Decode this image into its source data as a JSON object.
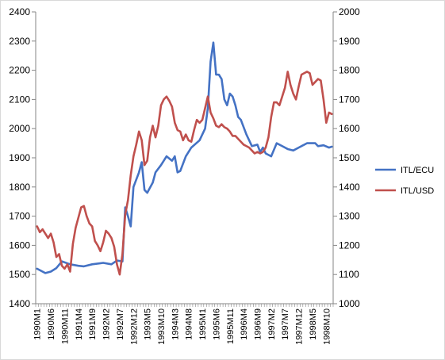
{
  "chart_data": {
    "type": "line",
    "title": "",
    "xlabel": "",
    "ylabel": "",
    "y_left": {
      "min": 1400,
      "max": 2400,
      "step": 100
    },
    "y_right": {
      "min": 1000,
      "max": 2000,
      "step": 100
    },
    "grid": false,
    "legend_position": "right",
    "x_tick_labels": [
      "1990M1",
      "1990M6",
      "1990M11",
      "1991M4",
      "1991M9",
      "1992M2",
      "1992M7",
      "1992M12",
      "1993M5",
      "1993M10",
      "1994M3",
      "1994M8",
      "1995M1",
      "1995M6",
      "1995M11",
      "1996M4",
      "1996M9",
      "1997M2",
      "1997M7",
      "1997M12",
      "1998M5",
      "1998M10"
    ],
    "x_start": "1990M1",
    "n_months": 108,
    "series": [
      {
        "name": "ITL/ECU",
        "axis": "left",
        "color": "#4472C4",
        "points": [
          [
            "1990M1",
            1520
          ],
          [
            "1990M4",
            1505
          ],
          [
            "1990M6",
            1510
          ],
          [
            "1990M8",
            1522
          ],
          [
            "1990M10",
            1545
          ],
          [
            "1991M1",
            1535
          ],
          [
            "1991M4",
            1530
          ],
          [
            "1991M6",
            1528
          ],
          [
            "1991M9",
            1535
          ],
          [
            "1992M1",
            1540
          ],
          [
            "1992M4",
            1535
          ],
          [
            "1992M6",
            1548
          ],
          [
            "1992M8",
            1545
          ],
          [
            "1992M9",
            1730
          ],
          [
            "1992M10",
            1700
          ],
          [
            "1992M11",
            1665
          ],
          [
            "1992M12",
            1800
          ],
          [
            "1993M2",
            1850
          ],
          [
            "1993M3",
            1885
          ],
          [
            "1993M4",
            1790
          ],
          [
            "1993M5",
            1780
          ],
          [
            "1993M7",
            1815
          ],
          [
            "1993M8",
            1850
          ],
          [
            "1993M10",
            1875
          ],
          [
            "1993M12",
            1905
          ],
          [
            "1994M2",
            1890
          ],
          [
            "1994M3",
            1905
          ],
          [
            "1994M4",
            1850
          ],
          [
            "1994M5",
            1855
          ],
          [
            "1994M7",
            1905
          ],
          [
            "1994M9",
            1935
          ],
          [
            "1994M12",
            1960
          ],
          [
            "1995M2",
            2000
          ],
          [
            "1995M3",
            2070
          ],
          [
            "1995M4",
            2230
          ],
          [
            "1995M5",
            2295
          ],
          [
            "1995M6",
            2185
          ],
          [
            "1995M7",
            2185
          ],
          [
            "1995M8",
            2170
          ],
          [
            "1995M9",
            2100
          ],
          [
            "1995M10",
            2080
          ],
          [
            "1995M11",
            2120
          ],
          [
            "1995M12",
            2110
          ],
          [
            "1996M1",
            2080
          ],
          [
            "1996M2",
            2040
          ],
          [
            "1996M3",
            2030
          ],
          [
            "1996M5",
            1980
          ],
          [
            "1996M7",
            1940
          ],
          [
            "1996M9",
            1945
          ],
          [
            "1996M10",
            1920
          ],
          [
            "1996M11",
            1935
          ],
          [
            "1996M12",
            1915
          ],
          [
            "1997M2",
            1905
          ],
          [
            "1997M4",
            1950
          ],
          [
            "1997M6",
            1940
          ],
          [
            "1997M8",
            1930
          ],
          [
            "1997M10",
            1925
          ],
          [
            "1997M12",
            1935
          ],
          [
            "1998M3",
            1950
          ],
          [
            "1998M6",
            1950
          ],
          [
            "1998M7",
            1940
          ],
          [
            "1998M9",
            1943
          ],
          [
            "1998M11",
            1935
          ],
          [
            "1998M12",
            1938
          ]
        ]
      },
      {
        "name": "ITL/USD",
        "axis": "right",
        "color": "#C0504D",
        "points": [
          [
            "1990M1",
            1265
          ],
          [
            "1990M2",
            1245
          ],
          [
            "1990M3",
            1255
          ],
          [
            "1990M5",
            1225
          ],
          [
            "1990M6",
            1240
          ],
          [
            "1990M7",
            1210
          ],
          [
            "1990M8",
            1160
          ],
          [
            "1990M9",
            1170
          ],
          [
            "1990M10",
            1130
          ],
          [
            "1990M11",
            1120
          ],
          [
            "1990M12",
            1135
          ],
          [
            "1991M1",
            1110
          ],
          [
            "1991M2",
            1205
          ],
          [
            "1991M3",
            1260
          ],
          [
            "1991M4",
            1295
          ],
          [
            "1991M5",
            1330
          ],
          [
            "1991M6",
            1335
          ],
          [
            "1991M7",
            1300
          ],
          [
            "1991M8",
            1275
          ],
          [
            "1991M9",
            1265
          ],
          [
            "1991M10",
            1215
          ],
          [
            "1991M11",
            1200
          ],
          [
            "1991M12",
            1180
          ],
          [
            "1992M1",
            1210
          ],
          [
            "1992M2",
            1250
          ],
          [
            "1992M3",
            1240
          ],
          [
            "1992M4",
            1225
          ],
          [
            "1992M5",
            1195
          ],
          [
            "1992M6",
            1135
          ],
          [
            "1992M7",
            1100
          ],
          [
            "1992M8",
            1170
          ],
          [
            "1992M9",
            1305
          ],
          [
            "1992M10",
            1355
          ],
          [
            "1992M11",
            1440
          ],
          [
            "1992M12",
            1505
          ],
          [
            "1993M1",
            1545
          ],
          [
            "1993M2",
            1590
          ],
          [
            "1993M3",
            1560
          ],
          [
            "1993M4",
            1475
          ],
          [
            "1993M5",
            1490
          ],
          [
            "1993M6",
            1570
          ],
          [
            "1993M7",
            1610
          ],
          [
            "1993M8",
            1570
          ],
          [
            "1993M9",
            1610
          ],
          [
            "1993M10",
            1680
          ],
          [
            "1993M11",
            1700
          ],
          [
            "1993M12",
            1710
          ],
          [
            "1994M1",
            1695
          ],
          [
            "1994M2",
            1675
          ],
          [
            "1994M3",
            1620
          ],
          [
            "1994M4",
            1595
          ],
          [
            "1994M5",
            1590
          ],
          [
            "1994M6",
            1560
          ],
          [
            "1994M7",
            1580
          ],
          [
            "1994M8",
            1560
          ],
          [
            "1994M9",
            1555
          ],
          [
            "1994M10",
            1595
          ],
          [
            "1994M11",
            1630
          ],
          [
            "1994M12",
            1620
          ],
          [
            "1995M1",
            1630
          ],
          [
            "1995M2",
            1670
          ],
          [
            "1995M3",
            1710
          ],
          [
            "1995M4",
            1655
          ],
          [
            "1995M5",
            1635
          ],
          [
            "1995M6",
            1610
          ],
          [
            "1995M7",
            1605
          ],
          [
            "1995M8",
            1615
          ],
          [
            "1995M9",
            1605
          ],
          [
            "1995M10",
            1600
          ],
          [
            "1995M11",
            1590
          ],
          [
            "1995M12",
            1575
          ],
          [
            "1996M1",
            1575
          ],
          [
            "1996M2",
            1565
          ],
          [
            "1996M3",
            1555
          ],
          [
            "1996M4",
            1545
          ],
          [
            "1996M5",
            1540
          ],
          [
            "1996M6",
            1535
          ],
          [
            "1996M7",
            1525
          ],
          [
            "1996M8",
            1515
          ],
          [
            "1996M9",
            1520
          ],
          [
            "1996M10",
            1515
          ],
          [
            "1996M11",
            1520
          ],
          [
            "1996M12",
            1535
          ],
          [
            "1997M1",
            1570
          ],
          [
            "1997M2",
            1640
          ],
          [
            "1997M3",
            1690
          ],
          [
            "1997M4",
            1690
          ],
          [
            "1997M5",
            1680
          ],
          [
            "1997M6",
            1710
          ],
          [
            "1997M7",
            1740
          ],
          [
            "1997M8",
            1795
          ],
          [
            "1997M9",
            1750
          ],
          [
            "1997M10",
            1720
          ],
          [
            "1997M11",
            1700
          ],
          [
            "1997M12",
            1745
          ],
          [
            "1998M1",
            1785
          ],
          [
            "1998M2",
            1790
          ],
          [
            "1998M3",
            1795
          ],
          [
            "1998M4",
            1790
          ],
          [
            "1998M5",
            1750
          ],
          [
            "1998M6",
            1760
          ],
          [
            "1998M7",
            1770
          ],
          [
            "1998M8",
            1765
          ],
          [
            "1998M9",
            1700
          ],
          [
            "1998M10",
            1620
          ],
          [
            "1998M11",
            1655
          ],
          [
            "1998M12",
            1650
          ]
        ]
      }
    ]
  }
}
